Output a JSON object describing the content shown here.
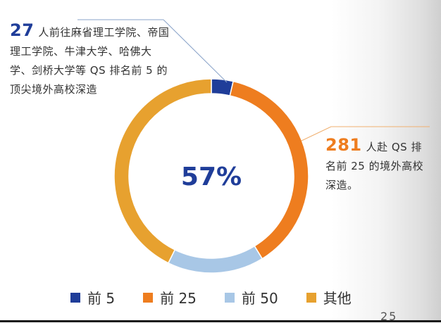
{
  "chart_data": {
    "type": "pie",
    "variant": "donut",
    "center_label": "57%",
    "categories": [
      "前 5",
      "前 25",
      "前 50",
      "其他"
    ],
    "values": [
      27,
      281,
      120,
      319
    ],
    "colors": [
      "#1f3d99",
      "#ee7d1f",
      "#a8c7e6",
      "#e7a12f"
    ],
    "legend_position": "bottom"
  },
  "annotations": {
    "top": {
      "number": "27",
      "text": "人前往麻省理工学院、帝国理工学院、牛津大学、哈佛大学、剑桥大学等 QS 排名前 5 的顶尖境外高校深造"
    },
    "right": {
      "number": "281",
      "text": "人赴 QS 排名前 25 的境外高校深造。"
    }
  },
  "page_number": "25"
}
